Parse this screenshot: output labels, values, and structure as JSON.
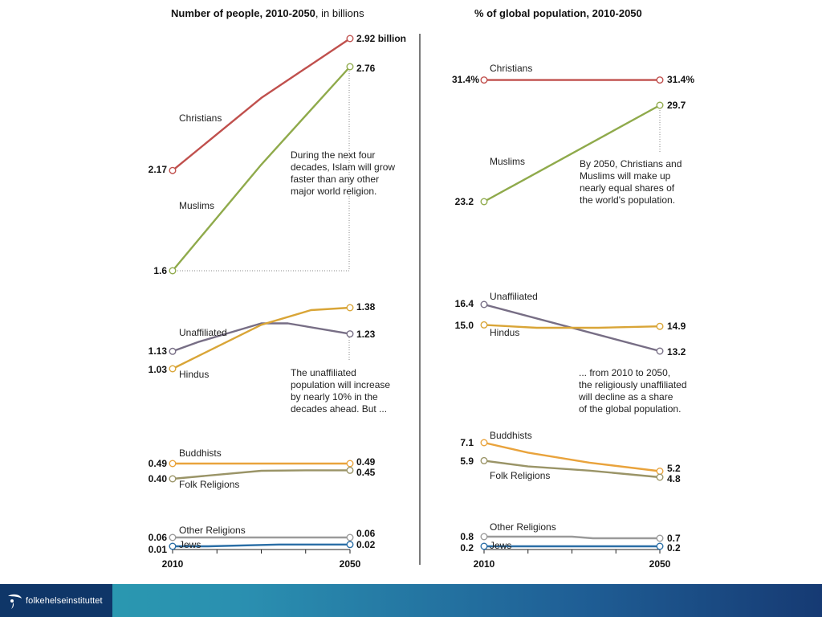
{
  "footer": {
    "logo_text": "folkehelseinstituttet"
  },
  "chart_data": [
    {
      "type": "line",
      "title_bold": "Number of people, 2010-2050",
      "title_light": ", in billions",
      "x": [
        2010,
        2050
      ],
      "x_tick_labels": [
        "2010",
        "2050"
      ],
      "series": [
        {
          "name": "Christians",
          "values": [
            2.17,
            2.92
          ],
          "start_label": "2.17",
          "end_label": "2.92 billion",
          "color": "#c0504d"
        },
        {
          "name": "Muslims",
          "values": [
            1.6,
            2.76
          ],
          "start_label": "1.6",
          "end_label": "2.76",
          "color": "#8faa4b"
        },
        {
          "name": "Unaffiliated",
          "values": [
            1.13,
            1.23
          ],
          "start_label": "1.13",
          "end_label": "1.23",
          "color": "#776e85"
        },
        {
          "name": "Hindus",
          "values": [
            1.03,
            1.38
          ],
          "start_label": "1.03",
          "end_label": "1.38",
          "color": "#d9a537"
        },
        {
          "name": "Buddhists",
          "values": [
            0.49,
            0.49
          ],
          "start_label": "0.49",
          "end_label": "0.49",
          "color": "#e9a33c"
        },
        {
          "name": "Folk Religions",
          "values": [
            0.4,
            0.45
          ],
          "start_label": "0.40",
          "end_label": "0.45",
          "color": "#9a9467"
        },
        {
          "name": "Other Religions",
          "values": [
            0.06,
            0.06
          ],
          "start_label": "0.06",
          "end_label": "0.06",
          "color": "#9a9a9a"
        },
        {
          "name": "Jews",
          "values": [
            0.01,
            0.02
          ],
          "start_label": "0.01",
          "end_label": "0.02",
          "color": "#2a6ea6"
        }
      ],
      "annotations": [
        "During the next four decades, Islam will grow faster than any other major world religion.",
        "The unaffiliated population will increase by nearly 10% in the decades ahead. But ..."
      ]
    },
    {
      "type": "line",
      "title_bold": "% of global population, 2010-2050",
      "title_light": "",
      "x": [
        2010,
        2050
      ],
      "x_tick_labels": [
        "2010",
        "2050"
      ],
      "series": [
        {
          "name": "Christians",
          "values": [
            31.4,
            31.4
          ],
          "start_label": "31.4%",
          "end_label": "31.4%",
          "color": "#c0504d"
        },
        {
          "name": "Muslims",
          "values": [
            23.2,
            29.7
          ],
          "start_label": "23.2",
          "end_label": "29.7",
          "color": "#8faa4b"
        },
        {
          "name": "Unaffiliated",
          "values": [
            16.4,
            13.2
          ],
          "start_label": "16.4",
          "end_label": "13.2",
          "color": "#776e85"
        },
        {
          "name": "Hindus",
          "values": [
            15.0,
            14.9
          ],
          "start_label": "15.0",
          "end_label": "14.9",
          "color": "#d9a537"
        },
        {
          "name": "Buddhists",
          "values": [
            7.1,
            5.2
          ],
          "start_label": "7.1",
          "end_label": "5.2",
          "color": "#e9a33c"
        },
        {
          "name": "Folk Religions",
          "values": [
            5.9,
            4.8
          ],
          "start_label": "5.9",
          "end_label": "4.8",
          "color": "#9a9467"
        },
        {
          "name": "Other Religions",
          "values": [
            0.8,
            0.7
          ],
          "start_label": "0.8",
          "end_label": "0.7",
          "color": "#9a9a9a"
        },
        {
          "name": "Jews",
          "values": [
            0.2,
            0.2
          ],
          "start_label": "0.2",
          "end_label": "0.2",
          "color": "#2a6ea6"
        }
      ],
      "annotations": [
        "By 2050, Christians and Muslims will make up nearly equal shares of the world's population.",
        "... from 2010 to 2050, the religiously unaffiliated will decline as a share of the global population."
      ]
    }
  ]
}
